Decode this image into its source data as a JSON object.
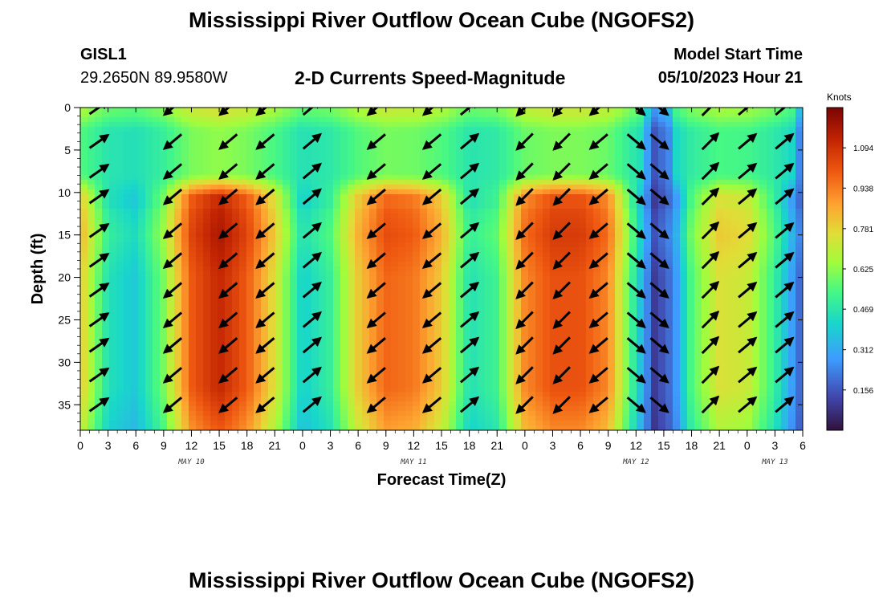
{
  "header": {
    "title": "Mississippi River Outflow Ocean Cube (NGOFS2)",
    "station": "GISL1",
    "coords": "29.2650N  89.9580W",
    "subtitle": "2-D Currents Speed-Magnitude",
    "model_label": "Model Start Time",
    "model_time": "05/10/2023 Hour 21"
  },
  "footer": {
    "title": "Mississippi River Outflow Ocean Cube (NGOFS2)"
  },
  "chart_data": {
    "type": "heatmap",
    "title": "2-D Currents Speed-Magnitude",
    "xlabel": "Forecast Time(Z)",
    "ylabel": "Depth (ft)",
    "x_ticks": [
      "0",
      "3",
      "6",
      "9",
      "12",
      "15",
      "18",
      "21",
      "0",
      "3",
      "6",
      "9",
      "12",
      "15",
      "18",
      "21",
      "0",
      "3",
      "6",
      "9",
      "12",
      "15",
      "18",
      "21",
      "0",
      "3",
      "6"
    ],
    "x_range_hours": [
      0,
      78
    ],
    "date_labels": [
      {
        "label": "MAY 10",
        "hour": 12
      },
      {
        "label": "MAY 11",
        "hour": 36
      },
      {
        "label": "MAY 12",
        "hour": 60
      },
      {
        "label": "MAY 13",
        "hour": 75
      }
    ],
    "y_ticks": [
      "0",
      "5",
      "10",
      "15",
      "20",
      "25",
      "30",
      "35"
    ],
    "y_range_ft": [
      0,
      38
    ],
    "y_inverted": true,
    "colorbar": {
      "unit": "Knots",
      "min": 0.0,
      "max": 1.25,
      "ticks": [
        "1.094",
        "0.938",
        "0.781",
        "0.625",
        "0.469",
        "0.312",
        "0.156"
      ]
    },
    "surface_pattern": "low speed (about 0.35–0.55 kn) from 0 to 8 ft, with a thin faster band near 9 ft",
    "subsurface_speed_profile_knots": [
      {
        "hour": 0,
        "speed": 0.8
      },
      {
        "hour": 3,
        "speed": 0.45
      },
      {
        "hour": 6,
        "speed": 0.38
      },
      {
        "hour": 9,
        "speed": 0.6
      },
      {
        "hour": 12,
        "speed": 1.0
      },
      {
        "hour": 15,
        "speed": 1.12
      },
      {
        "hour": 18,
        "speed": 1.0
      },
      {
        "hour": 21,
        "speed": 0.75
      },
      {
        "hour": 24,
        "speed": 0.4
      },
      {
        "hour": 27,
        "speed": 0.5
      },
      {
        "hour": 30,
        "speed": 0.8
      },
      {
        "hour": 33,
        "speed": 0.98
      },
      {
        "hour": 36,
        "speed": 0.95
      },
      {
        "hour": 39,
        "speed": 0.8
      },
      {
        "hour": 42,
        "speed": 0.45
      },
      {
        "hour": 45,
        "speed": 0.52
      },
      {
        "hour": 48,
        "speed": 0.92
      },
      {
        "hour": 51,
        "speed": 1.02
      },
      {
        "hour": 54,
        "speed": 1.02
      },
      {
        "hour": 57,
        "speed": 0.92
      },
      {
        "hour": 60,
        "speed": 0.45
      },
      {
        "hour": 62,
        "speed": 0.1
      },
      {
        "hour": 64,
        "speed": 0.22
      },
      {
        "hour": 66,
        "speed": 0.55
      },
      {
        "hour": 69,
        "speed": 0.75
      },
      {
        "hour": 72,
        "speed": 0.72
      },
      {
        "hour": 75,
        "speed": 0.5
      },
      {
        "hour": 78,
        "speed": 0.15
      }
    ],
    "vector_rows_ft": [
      0,
      4,
      7.5,
      10.5,
      14.5,
      18,
      21.5,
      25,
      28,
      31.5,
      35
    ],
    "vector_direction_deg": [
      {
        "hour": 2,
        "dir": 325
      },
      {
        "hour": 10,
        "dir": 140
      },
      {
        "hour": 16,
        "dir": 140
      },
      {
        "hour": 20,
        "dir": 140
      },
      {
        "hour": 25,
        "dir": 320
      },
      {
        "hour": 32,
        "dir": 140
      },
      {
        "hour": 38,
        "dir": 140
      },
      {
        "hour": 42,
        "dir": 320
      },
      {
        "hour": 48,
        "dir": 135
      },
      {
        "hour": 52,
        "dir": 135
      },
      {
        "hour": 56,
        "dir": 140
      },
      {
        "hour": 60,
        "dir": 40
      },
      {
        "hour": 62.5,
        "dir": 40
      },
      {
        "hour": 68,
        "dir": 315
      },
      {
        "hour": 72,
        "dir": 320
      },
      {
        "hour": 76,
        "dir": 320
      }
    ]
  }
}
